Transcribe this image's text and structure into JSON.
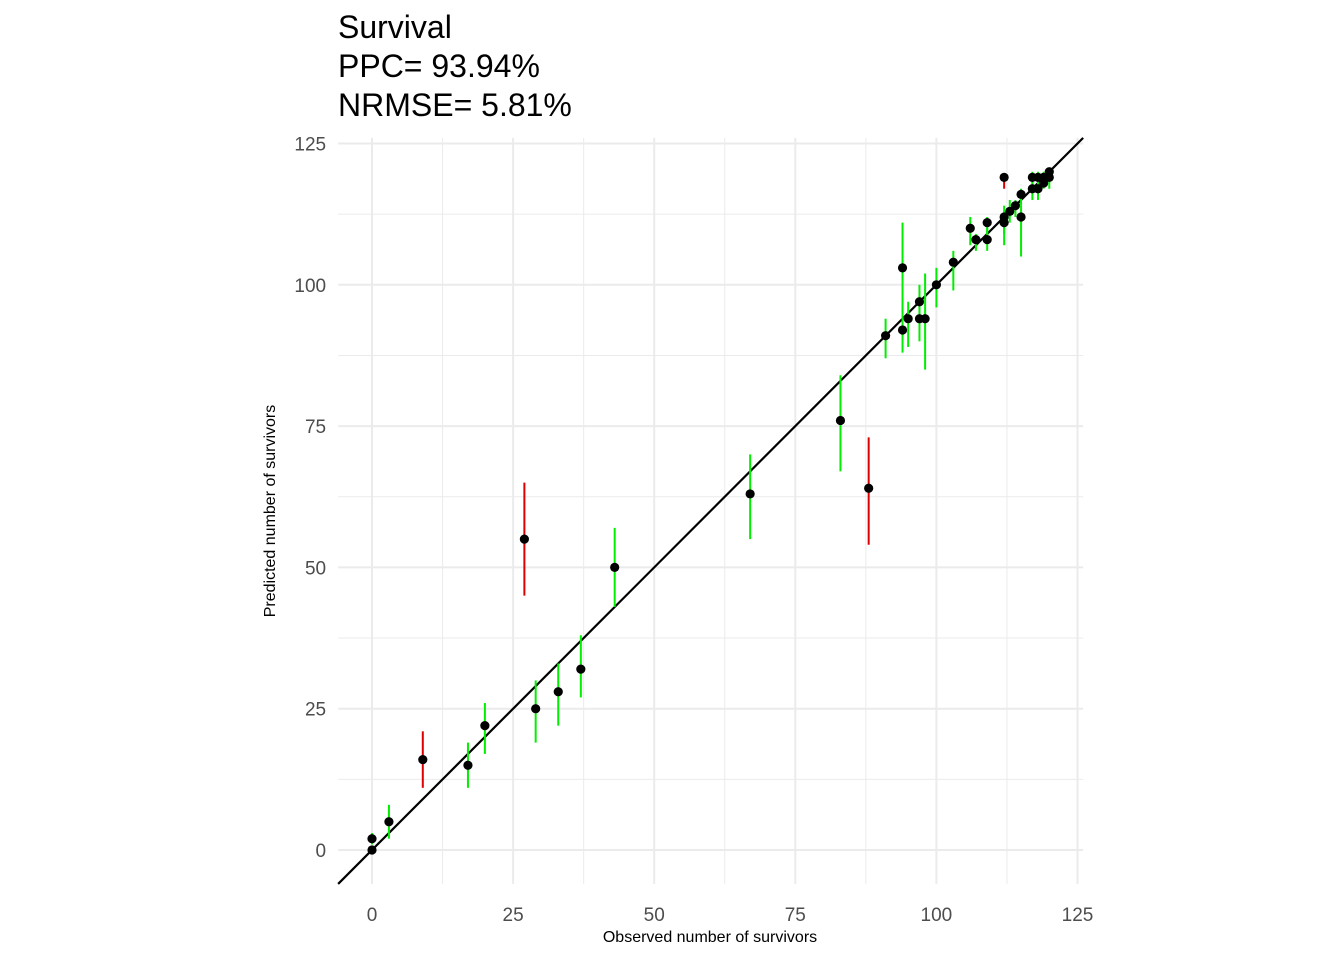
{
  "chart_data": {
    "type": "scatter",
    "title": "Survival",
    "subtitle_lines": [
      "PPC= 93.94%",
      "NRMSE= 5.81%"
    ],
    "xlabel": "Observed number of survivors",
    "ylabel": "Predicted number of survivors",
    "xlim": [
      -6,
      126
    ],
    "ylim": [
      -6,
      126
    ],
    "xticks": [
      0,
      25,
      50,
      75,
      100,
      125
    ],
    "yticks": [
      0,
      25,
      50,
      75,
      100,
      125
    ],
    "grid": true,
    "reference_line": "y = x",
    "colors": {
      "within_interval": "#00ee00",
      "outside_interval": "#dd0000",
      "point": "#000000",
      "line": "#000000",
      "grid": "#ebebeb"
    },
    "points": [
      {
        "x": 0,
        "y": 0,
        "lo": 0,
        "hi": 0,
        "color": "green"
      },
      {
        "x": 0,
        "y": 2,
        "lo": 1,
        "hi": 3,
        "color": "green"
      },
      {
        "x": 3,
        "y": 5,
        "lo": 2,
        "hi": 8,
        "color": "green"
      },
      {
        "x": 9,
        "y": 16,
        "lo": 11,
        "hi": 21,
        "color": "red"
      },
      {
        "x": 17,
        "y": 15,
        "lo": 11,
        "hi": 19,
        "color": "green"
      },
      {
        "x": 20,
        "y": 22,
        "lo": 17,
        "hi": 26,
        "color": "green"
      },
      {
        "x": 27,
        "y": 55,
        "lo": 45,
        "hi": 65,
        "color": "red"
      },
      {
        "x": 29,
        "y": 25,
        "lo": 19,
        "hi": 30,
        "color": "green"
      },
      {
        "x": 33,
        "y": 28,
        "lo": 22,
        "hi": 33,
        "color": "green"
      },
      {
        "x": 37,
        "y": 32,
        "lo": 27,
        "hi": 38,
        "color": "green"
      },
      {
        "x": 43,
        "y": 50,
        "lo": 43,
        "hi": 57,
        "color": "green"
      },
      {
        "x": 67,
        "y": 63,
        "lo": 55,
        "hi": 70,
        "color": "green"
      },
      {
        "x": 83,
        "y": 76,
        "lo": 67,
        "hi": 84,
        "color": "green"
      },
      {
        "x": 88,
        "y": 64,
        "lo": 54,
        "hi": 73,
        "color": "red"
      },
      {
        "x": 91,
        "y": 91,
        "lo": 87,
        "hi": 94,
        "color": "green"
      },
      {
        "x": 94,
        "y": 103,
        "lo": 95,
        "hi": 111,
        "color": "green"
      },
      {
        "x": 94,
        "y": 92,
        "lo": 88,
        "hi": 96,
        "color": "green"
      },
      {
        "x": 95,
        "y": 94,
        "lo": 89,
        "hi": 97,
        "color": "green"
      },
      {
        "x": 97,
        "y": 97,
        "lo": 93,
        "hi": 100,
        "color": "green"
      },
      {
        "x": 97,
        "y": 94,
        "lo": 90,
        "hi": 98,
        "color": "green"
      },
      {
        "x": 98,
        "y": 94,
        "lo": 85,
        "hi": 102,
        "color": "green"
      },
      {
        "x": 100,
        "y": 100,
        "lo": 96,
        "hi": 103,
        "color": "green"
      },
      {
        "x": 103,
        "y": 104,
        "lo": 99,
        "hi": 106,
        "color": "green"
      },
      {
        "x": 106,
        "y": 110,
        "lo": 107,
        "hi": 112,
        "color": "green"
      },
      {
        "x": 107,
        "y": 108,
        "lo": 106,
        "hi": 109,
        "color": "green"
      },
      {
        "x": 109,
        "y": 111,
        "lo": 109,
        "hi": 112,
        "color": "green"
      },
      {
        "x": 109,
        "y": 108,
        "lo": 106,
        "hi": 110,
        "color": "green"
      },
      {
        "x": 112,
        "y": 119,
        "lo": 117,
        "hi": 119,
        "color": "red"
      },
      {
        "x": 112,
        "y": 112,
        "lo": 107,
        "hi": 114,
        "color": "green"
      },
      {
        "x": 112,
        "y": 111,
        "lo": 109,
        "hi": 113,
        "color": "green"
      },
      {
        "x": 113,
        "y": 113,
        "lo": 111,
        "hi": 115,
        "color": "green"
      },
      {
        "x": 114,
        "y": 114,
        "lo": 112,
        "hi": 115,
        "color": "green"
      },
      {
        "x": 115,
        "y": 116,
        "lo": 114,
        "hi": 117,
        "color": "green"
      },
      {
        "x": 115,
        "y": 112,
        "lo": 105,
        "hi": 114,
        "color": "green"
      },
      {
        "x": 117,
        "y": 119,
        "lo": 117,
        "hi": 120,
        "color": "green"
      },
      {
        "x": 117,
        "y": 117,
        "lo": 115,
        "hi": 119,
        "color": "green"
      },
      {
        "x": 118,
        "y": 119,
        "lo": 116,
        "hi": 120,
        "color": "green"
      },
      {
        "x": 118,
        "y": 117,
        "lo": 115,
        "hi": 118,
        "color": "green"
      },
      {
        "x": 119,
        "y": 118,
        "lo": 117,
        "hi": 119,
        "color": "green"
      },
      {
        "x": 119,
        "y": 119,
        "lo": 118,
        "hi": 120,
        "color": "green"
      },
      {
        "x": 120,
        "y": 119,
        "lo": 117,
        "hi": 120,
        "color": "green"
      },
      {
        "x": 120,
        "y": 120,
        "lo": 118,
        "hi": 120,
        "color": "green"
      }
    ]
  }
}
